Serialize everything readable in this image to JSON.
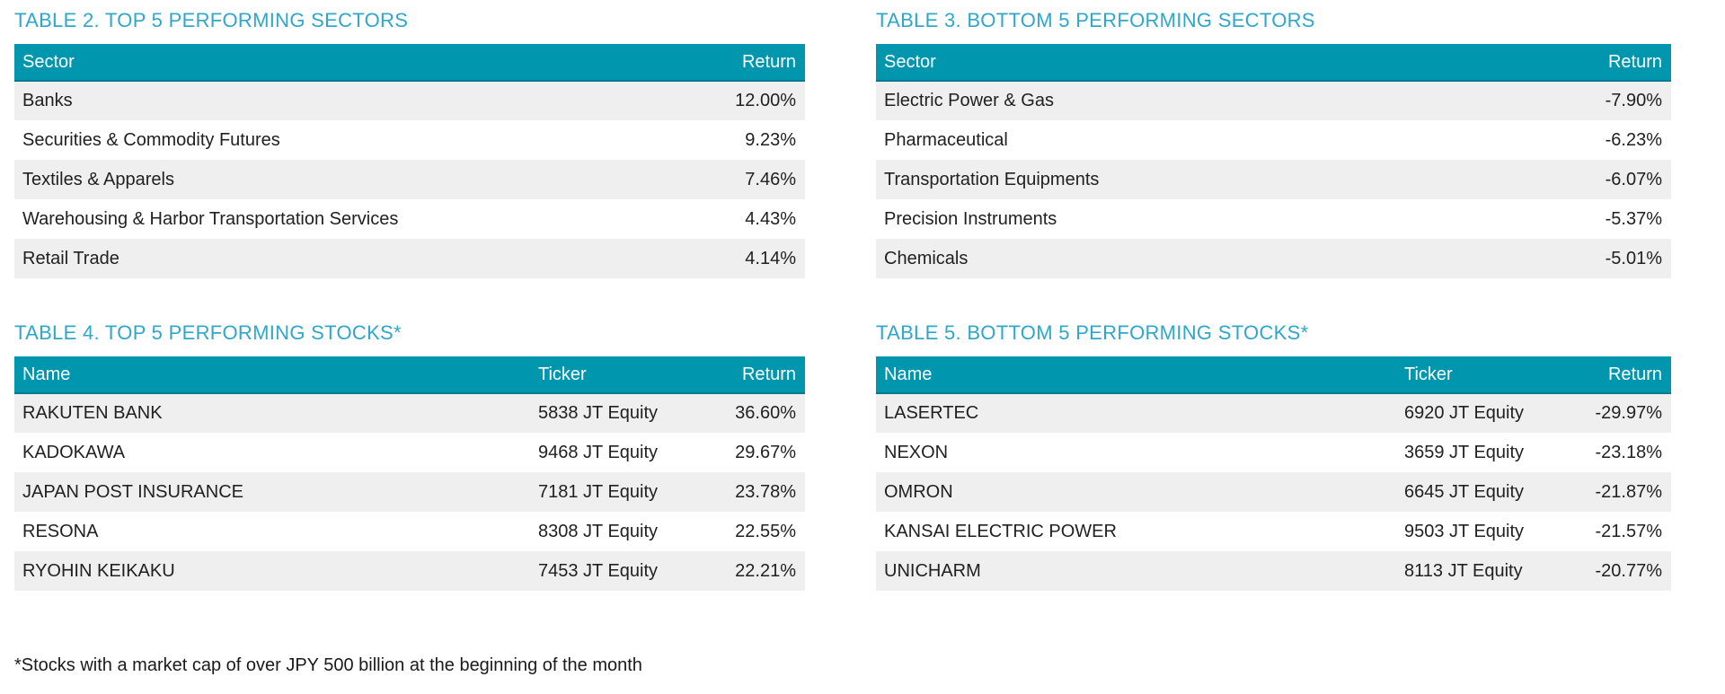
{
  "colors": {
    "title": "#2EA7CB",
    "header_bg": "#0097AE",
    "header_border": "#00798F",
    "header_text": "#FFFFFF",
    "row_stripe": "#EFEFEF",
    "body_text": "#212121"
  },
  "tables": {
    "top_sectors": {
      "title": "TABLE 2. TOP 5 PERFORMING SECTORS",
      "columns": {
        "sector": "Sector",
        "return": "Return"
      },
      "rows": [
        {
          "sector": "Banks",
          "return": "12.00%"
        },
        {
          "sector": "Securities & Commodity Futures",
          "return": "9.23%"
        },
        {
          "sector": "Textiles & Apparels",
          "return": "7.46%"
        },
        {
          "sector": "Warehousing & Harbor Transportation Services",
          "return": "4.43%"
        },
        {
          "sector": "Retail Trade",
          "return": "4.14%"
        }
      ]
    },
    "bottom_sectors": {
      "title": "TABLE 3. BOTTOM 5 PERFORMING SECTORS",
      "columns": {
        "sector": "Sector",
        "return": "Return"
      },
      "rows": [
        {
          "sector": "Electric Power & Gas",
          "return": "-7.90%"
        },
        {
          "sector": "Pharmaceutical",
          "return": "-6.23%"
        },
        {
          "sector": "Transportation Equipments",
          "return": "-6.07%"
        },
        {
          "sector": "Precision Instruments",
          "return": "-5.37%"
        },
        {
          "sector": "Chemicals",
          "return": "-5.01%"
        }
      ]
    },
    "top_stocks": {
      "title": "TABLE 4. TOP 5 PERFORMING STOCKS*",
      "columns": {
        "name": "Name",
        "ticker": "Ticker",
        "return": "Return"
      },
      "rows": [
        {
          "name": "RAKUTEN BANK",
          "ticker": "5838 JT Equity",
          "return": "36.60%"
        },
        {
          "name": "KADOKAWA",
          "ticker": "9468 JT Equity",
          "return": "29.67%"
        },
        {
          "name": "JAPAN POST INSURANCE",
          "ticker": "7181 JT Equity",
          "return": "23.78%"
        },
        {
          "name": "RESONA",
          "ticker": "8308 JT Equity",
          "return": "22.55%"
        },
        {
          "name": "RYOHIN KEIKAKU",
          "ticker": "7453 JT Equity",
          "return": "22.21%"
        }
      ]
    },
    "bottom_stocks": {
      "title": "TABLE 5. BOTTOM 5 PERFORMING STOCKS*",
      "columns": {
        "name": "Name",
        "ticker": "Ticker",
        "return": "Return"
      },
      "rows": [
        {
          "name": "LASERTEC",
          "ticker": "6920 JT Equity",
          "return": "-29.97%"
        },
        {
          "name": "NEXON",
          "ticker": "3659 JT Equity",
          "return": "-23.18%"
        },
        {
          "name": "OMRON",
          "ticker": "6645 JT Equity",
          "return": "-21.87%"
        },
        {
          "name": "KANSAI ELECTRIC POWER",
          "ticker": "9503 JT Equity",
          "return": "-21.57%"
        },
        {
          "name": "UNICHARM",
          "ticker": "8113 JT Equity",
          "return": "-20.77%"
        }
      ]
    }
  },
  "footnote": "*Stocks with a market cap of over JPY 500 billion at the beginning of the month"
}
